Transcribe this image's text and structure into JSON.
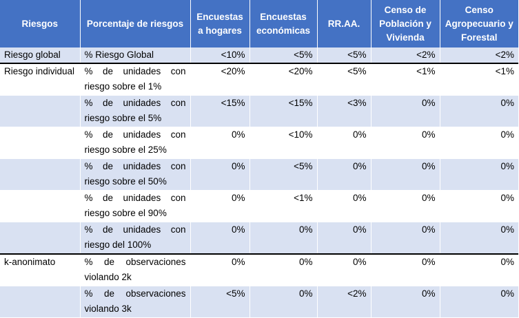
{
  "table": {
    "headers": [
      "Riesgos",
      "Porcentaje de riesgos",
      "Encuestas a hogares",
      "Encuestas económicas",
      "RR.AA.",
      "Censo de Población y Vivienda",
      "Censo Agropecuario y Forestal"
    ],
    "rows": [
      {
        "riesgo": "Riesgo global",
        "porcentaje": "% Riesgo Global",
        "hogares": "<10%",
        "economicas": "<5%",
        "rraa": "<5%",
        "cpv": "<2%",
        "caf": "<2%"
      },
      {
        "riesgo": "Riesgo individual",
        "porcentaje": "% de unidades con riesgo sobre el 1%",
        "hogares": "<20%",
        "economicas": "<20%",
        "rraa": "<5%",
        "cpv": "<1%",
        "caf": "<1%"
      },
      {
        "riesgo": "",
        "porcentaje": "% de unidades con riesgo sobre el 5%",
        "hogares": "<15%",
        "economicas": "<15%",
        "rraa": "<3%",
        "cpv": "0%",
        "caf": "0%"
      },
      {
        "riesgo": "",
        "porcentaje": "% de unidades con riesgo sobre el 25%",
        "hogares": "0%",
        "economicas": "<10%",
        "rraa": "0%",
        "cpv": "0%",
        "caf": "0%"
      },
      {
        "riesgo": "",
        "porcentaje": "% de unidades con riesgo sobre el 50%",
        "hogares": "0%",
        "economicas": "<5%",
        "rraa": "0%",
        "cpv": "0%",
        "caf": "0%"
      },
      {
        "riesgo": "",
        "porcentaje": "% de unidades con riesgo sobre el 90%",
        "hogares": "0%",
        "economicas": "<1%",
        "rraa": "0%",
        "cpv": "0%",
        "caf": "0%"
      },
      {
        "riesgo": "",
        "porcentaje": "% de unidades con riesgo del 100%",
        "hogares": "0%",
        "economicas": "0%",
        "rraa": "0%",
        "cpv": "0%",
        "caf": "0%"
      },
      {
        "riesgo": "k-anonimato",
        "porcentaje": "% de observaciones violando 2k",
        "hogares": "0%",
        "economicas": "0%",
        "rraa": "0%",
        "cpv": "0%",
        "caf": "0%"
      },
      {
        "riesgo": "",
        "porcentaje": "% de observaciones violando 3k",
        "hogares": "<5%",
        "economicas": "0%",
        "rraa": "<2%",
        "cpv": "0%",
        "caf": "0%"
      }
    ]
  },
  "colors": {
    "header_bg": "#4472c4",
    "header_text": "#ffffff",
    "row_shaded": "#d9e1f2",
    "row_plain": "#ffffff",
    "group_rule": "#000000"
  }
}
